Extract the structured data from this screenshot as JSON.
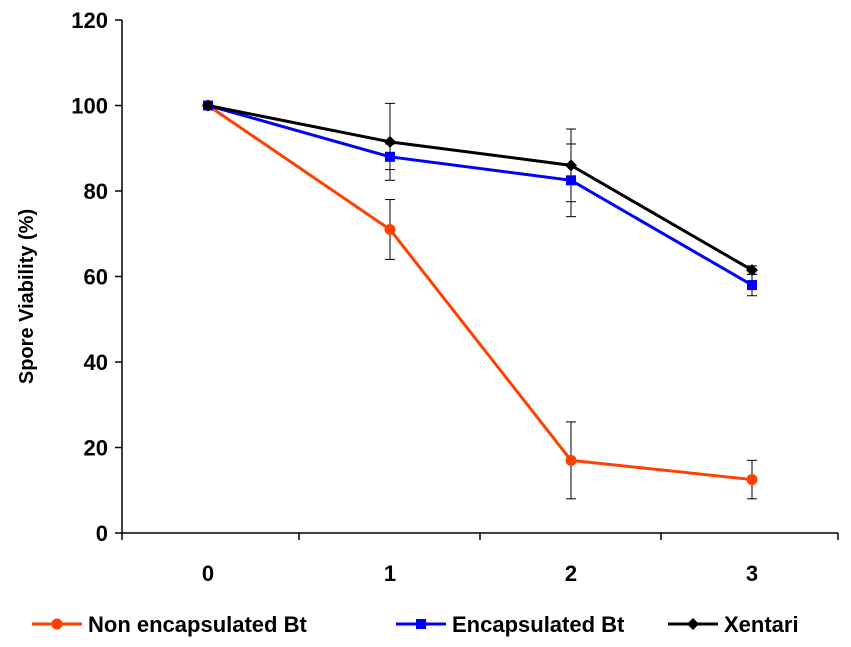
{
  "chart_data": {
    "type": "line",
    "title": "",
    "xlabel": "",
    "ylabel": "Spore Viability (%)",
    "x": [
      0,
      1,
      2,
      3
    ],
    "xticks": [
      "0",
      "1",
      "2",
      "3"
    ],
    "yticks": [
      "0",
      "20",
      "40",
      "60",
      "80",
      "100",
      "120"
    ],
    "ylim": [
      0,
      120
    ],
    "grid": false,
    "legend_position": "bottom",
    "series": [
      {
        "name": "Non encapsulated Bt",
        "color": "#ff4000",
        "marker": "circle",
        "values": [
          100,
          71,
          17,
          12.5
        ],
        "errors": [
          0,
          7,
          9,
          4.5
        ]
      },
      {
        "name": "Encapsulated Bt",
        "color": "#0000ff",
        "marker": "square",
        "values": [
          100,
          88,
          82.5,
          58
        ],
        "errors": [
          0,
          3,
          8.5,
          2.5
        ]
      },
      {
        "name": "Xentari",
        "color": "#000000",
        "marker": "diamond",
        "values": [
          100,
          91.5,
          86,
          61.5
        ],
        "errors": [
          0,
          9,
          8.5,
          1
        ]
      }
    ]
  }
}
